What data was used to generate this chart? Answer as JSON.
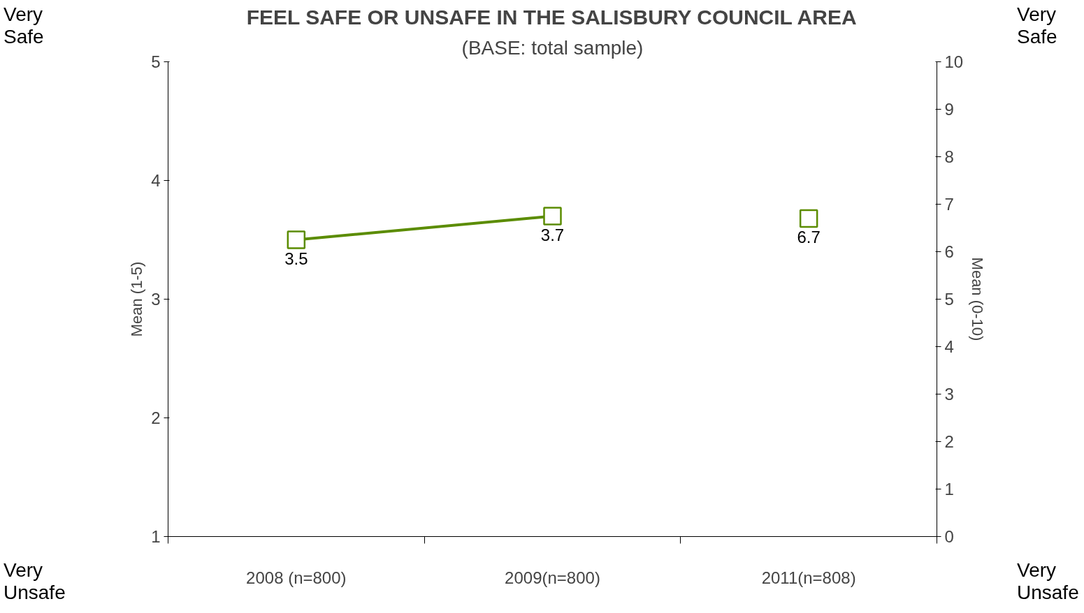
{
  "chart_data": {
    "type": "line",
    "title": "FEEL SAFE OR UNSAFE IN THE SALISBURY COUNCIL AREA",
    "subtitle": "(BASE: total sample)",
    "categories": [
      "2008 (n=800)",
      "2009(n=800)",
      "2011(n=808)"
    ],
    "series": [
      {
        "color": "#5b8c00",
        "values": [
          3.5,
          3.7,
          null
        ]
      },
      {
        "type": "scatter",
        "axis": "y2",
        "color": "#5b8c00",
        "values": [
          null,
          null,
          6.7
        ]
      }
    ],
    "ylabel": "Mean (1-5)",
    "y2label": "Mean (0-10)",
    "ylim": [
      1,
      5
    ],
    "yticks": [
      1,
      2,
      3,
      4,
      5
    ],
    "y2lim": [
      0,
      10
    ],
    "y2ticks": [
      0,
      1,
      2,
      3,
      4,
      5,
      6,
      7,
      8,
      9,
      10
    ],
    "annotations": [
      "Very\nSafe",
      "Very\nUnsafe",
      "Very\nSafe",
      "Very\nUnsafe"
    ],
    "marker": "square",
    "data_labels": true,
    "grid": false
  }
}
